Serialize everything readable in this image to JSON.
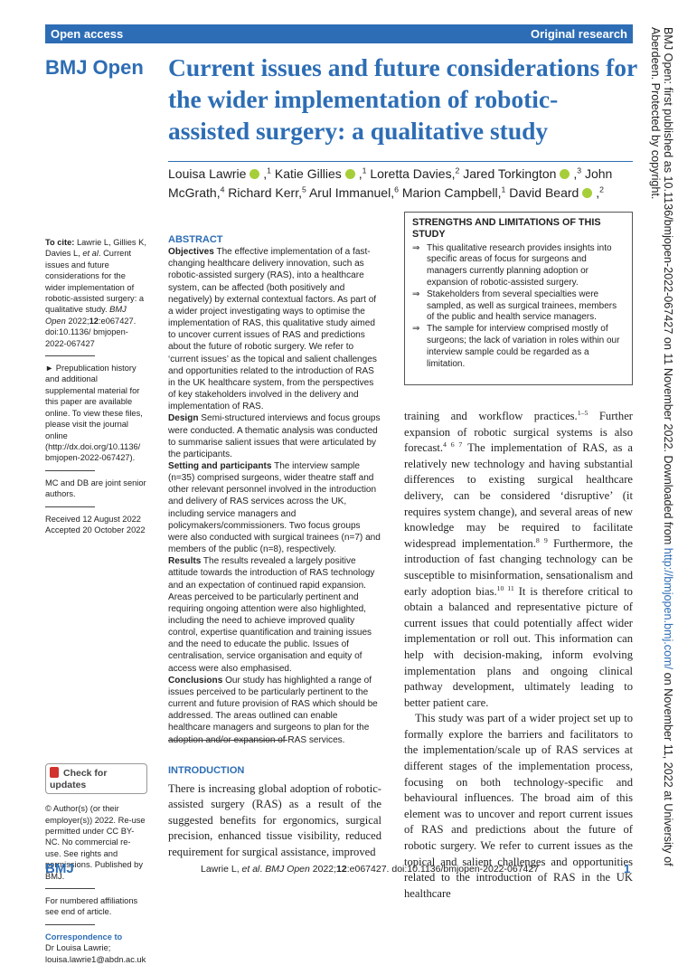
{
  "header": {
    "left": "Open access",
    "right": "Original research"
  },
  "journal_logo": "BMJ Open",
  "title": "Current issues and future considerations for the wider implementation of robotic-assisted surgery: a qualitative study",
  "authors": [
    {
      "name": "Louisa Lawrie",
      "orcid": true,
      "aff": "1"
    },
    {
      "name": "Katie Gillies",
      "orcid": true,
      "aff": "1"
    },
    {
      "name": "Loretta Davies",
      "orcid": false,
      "aff": "2"
    },
    {
      "name": "Jared Torkington",
      "orcid": true,
      "aff": "3"
    },
    {
      "name": "John McGrath",
      "orcid": false,
      "aff": "4"
    },
    {
      "name": "Richard Kerr",
      "orcid": false,
      "aff": "5"
    },
    {
      "name": "Arul Immanuel",
      "orcid": false,
      "aff": "6"
    },
    {
      "name": "Marion Campbell",
      "orcid": false,
      "aff": "1"
    },
    {
      "name": "David Beard",
      "orcid": true,
      "aff": "2"
    }
  ],
  "sidebar": {
    "cite": [
      {
        "b": "To cite:"
      },
      " Lawrie L, Gillies K, Davies L, ",
      {
        "i": "et al"
      },
      ". Current issues and future considerations for the wider implementation of robotic-assisted surgery: a qualitative study. ",
      {
        "i": "BMJ Open"
      },
      " 2022;",
      {
        "b": "12"
      },
      ":e067427. doi:10.1136/ bmjopen-2022-067427"
    ],
    "supplement": [
      "► Prepublication history and additional supplemental material for this paper are available online. To view these files, please visit the journal online (http://dx.doi.org/10.1136/ bmjopen-2022-067427)."
    ],
    "joint": [
      "MC and DB are joint senior authors."
    ],
    "dates": [
      "Received 12 August 2022",
      "Accepted 20 October 2022"
    ],
    "updates": "Check for updates",
    "license": [
      "© Author(s) (or their employer(s)) 2022. Re-use permitted under CC BY-NC. No commercial re-use. See rights and permissions. Published by BMJ."
    ],
    "affiliations": [
      "For numbered affiliations see end of article."
    ],
    "correspondence_label": "Correspondence to",
    "correspondence": [
      "Dr Louisa Lawrie;",
      "louisa.lawrie1@abdn.ac.uk"
    ]
  },
  "abstract": {
    "heading": "ABSTRACT",
    "sections": [
      {
        "label": "Objectives",
        "text": "The effective implementation of a fast-changing healthcare delivery innovation, such as robotic-assisted surgery (RAS), into a healthcare system, can be affected (both positively and negatively) by external contextual factors. As part of a wider project investigating ways to optimise the implementation of RAS, this qualitative study aimed to uncover current issues of RAS and predictions about the future of robotic surgery. We refer to ‘current issues’ as the topical and salient challenges and opportunities related to the introduction of RAS in the UK healthcare system, from the perspectives of key stakeholders involved in the delivery and implementation of RAS."
      },
      {
        "label": "Design",
        "text": "Semi-structured interviews and focus groups were conducted. A thematic analysis was conducted to summarise salient issues that were articulated by the participants."
      },
      {
        "label": "Setting and participants",
        "text": "The interview sample (n=35) comprised surgeons, wider theatre staff and other relevant personnel involved in the introduction and delivery of RAS services across the UK, including service managers and policymakers/commissioners. Two focus groups were also conducted with surgical trainees (n=7) and members of the public (n=8), respectively."
      },
      {
        "label": "Results",
        "text": "The results revealed a largely positive attitude towards the introduction of RAS technology and an expectation of continued rapid expansion. Areas perceived to be particularly pertinent and requiring ongoing attention were also highlighted, including the need to achieve improved quality control, expertise quantification and training issues and the need to educate the public. Issues of centralisation, service organisation and equity of access were also emphasised."
      },
      {
        "label": "Conclusions",
        "text": "Our study has highlighted a range of issues perceived to be particularly pertinent to the current and future provision of RAS which should be addressed. The areas outlined can enable healthcare managers and surgeons to plan for the adoption and/or expansion of RAS services."
      }
    ]
  },
  "strengths": {
    "heading": "STRENGTHS AND LIMITATIONS OF THIS STUDY",
    "items": [
      "This qualitative research provides insights into specific areas of focus for surgeons and managers currently planning adoption or expansion of robotic-assisted surgery.",
      "Stakeholders from several specialties were sampled, as well as surgical trainees, members of the public and health service managers.",
      "The sample for interview comprised mostly of surgeons; the lack of variation in roles within our interview sample could be regarded as a limitation."
    ]
  },
  "introduction": {
    "heading": "INTRODUCTION",
    "left": [
      "There is increasing global adoption of robotic-assisted surgery (RAS) as a result of the suggested benefits for ergonomics, surgical precision, enhanced tissue visibility, reduced requirement for surgical assistance, improved"
    ],
    "right": [
      [
        "training and workflow practices.",
        {
          "sup": "1–5"
        },
        " Further expansion of robotic surgical systems is also forecast.",
        {
          "sup": "4 6 7"
        },
        " The implementation of RAS, as a relatively new technology and having substantial differences to existing surgical healthcare delivery, can be considered ‘disruptive’ (it requires system change), and several areas of new knowledge may be required to facilitate widespread implementation.",
        {
          "sup": "8 9"
        },
        " Furthermore, the introduction of fast changing technology can be susceptible to misinformation, sensationalism and early adoption bias.",
        {
          "sup": "10 11"
        },
        " It is therefore critical to obtain a balanced and representative picture of current issues that could potentially affect wider implementation or roll out. This information can help with decision-making, inform evolving implementation plans and ongoing clinical pathway development, ultimately leading to better patient care."
      ],
      [
        "This study was part of a wider project set up to formally explore the barriers and facilitators to the implementation/scale up of RAS services at different stages of the implementation process, focusing on both technology-specific and behavioural influences. The broad aim of this element was to uncover and report current issues of RAS and predictions about the future of robotic surgery. We refer to current issues as the topical and salient challenges and opportunities related to the introduction of RAS in the UK healthcare"
      ]
    ]
  },
  "side_notice": [
    "BMJ Open: first published as 10.1136/bmjopen-2022-067427 on 11 November 2022. Downloaded from ",
    {
      "link": "http://bmjopen.bmj.com/"
    },
    " on November 11, 2022 at University of Aberdeen. Protected by copyright."
  ],
  "footer": {
    "logo": "BMJ",
    "citation": [
      "Lawrie L, ",
      {
        "i": "et al"
      },
      ". ",
      {
        "i": "BMJ Open"
      },
      " 2022;",
      {
        "b": "12"
      },
      ":e067427. doi:10.1136/bmjopen-2022-067427"
    ],
    "page": "1"
  }
}
